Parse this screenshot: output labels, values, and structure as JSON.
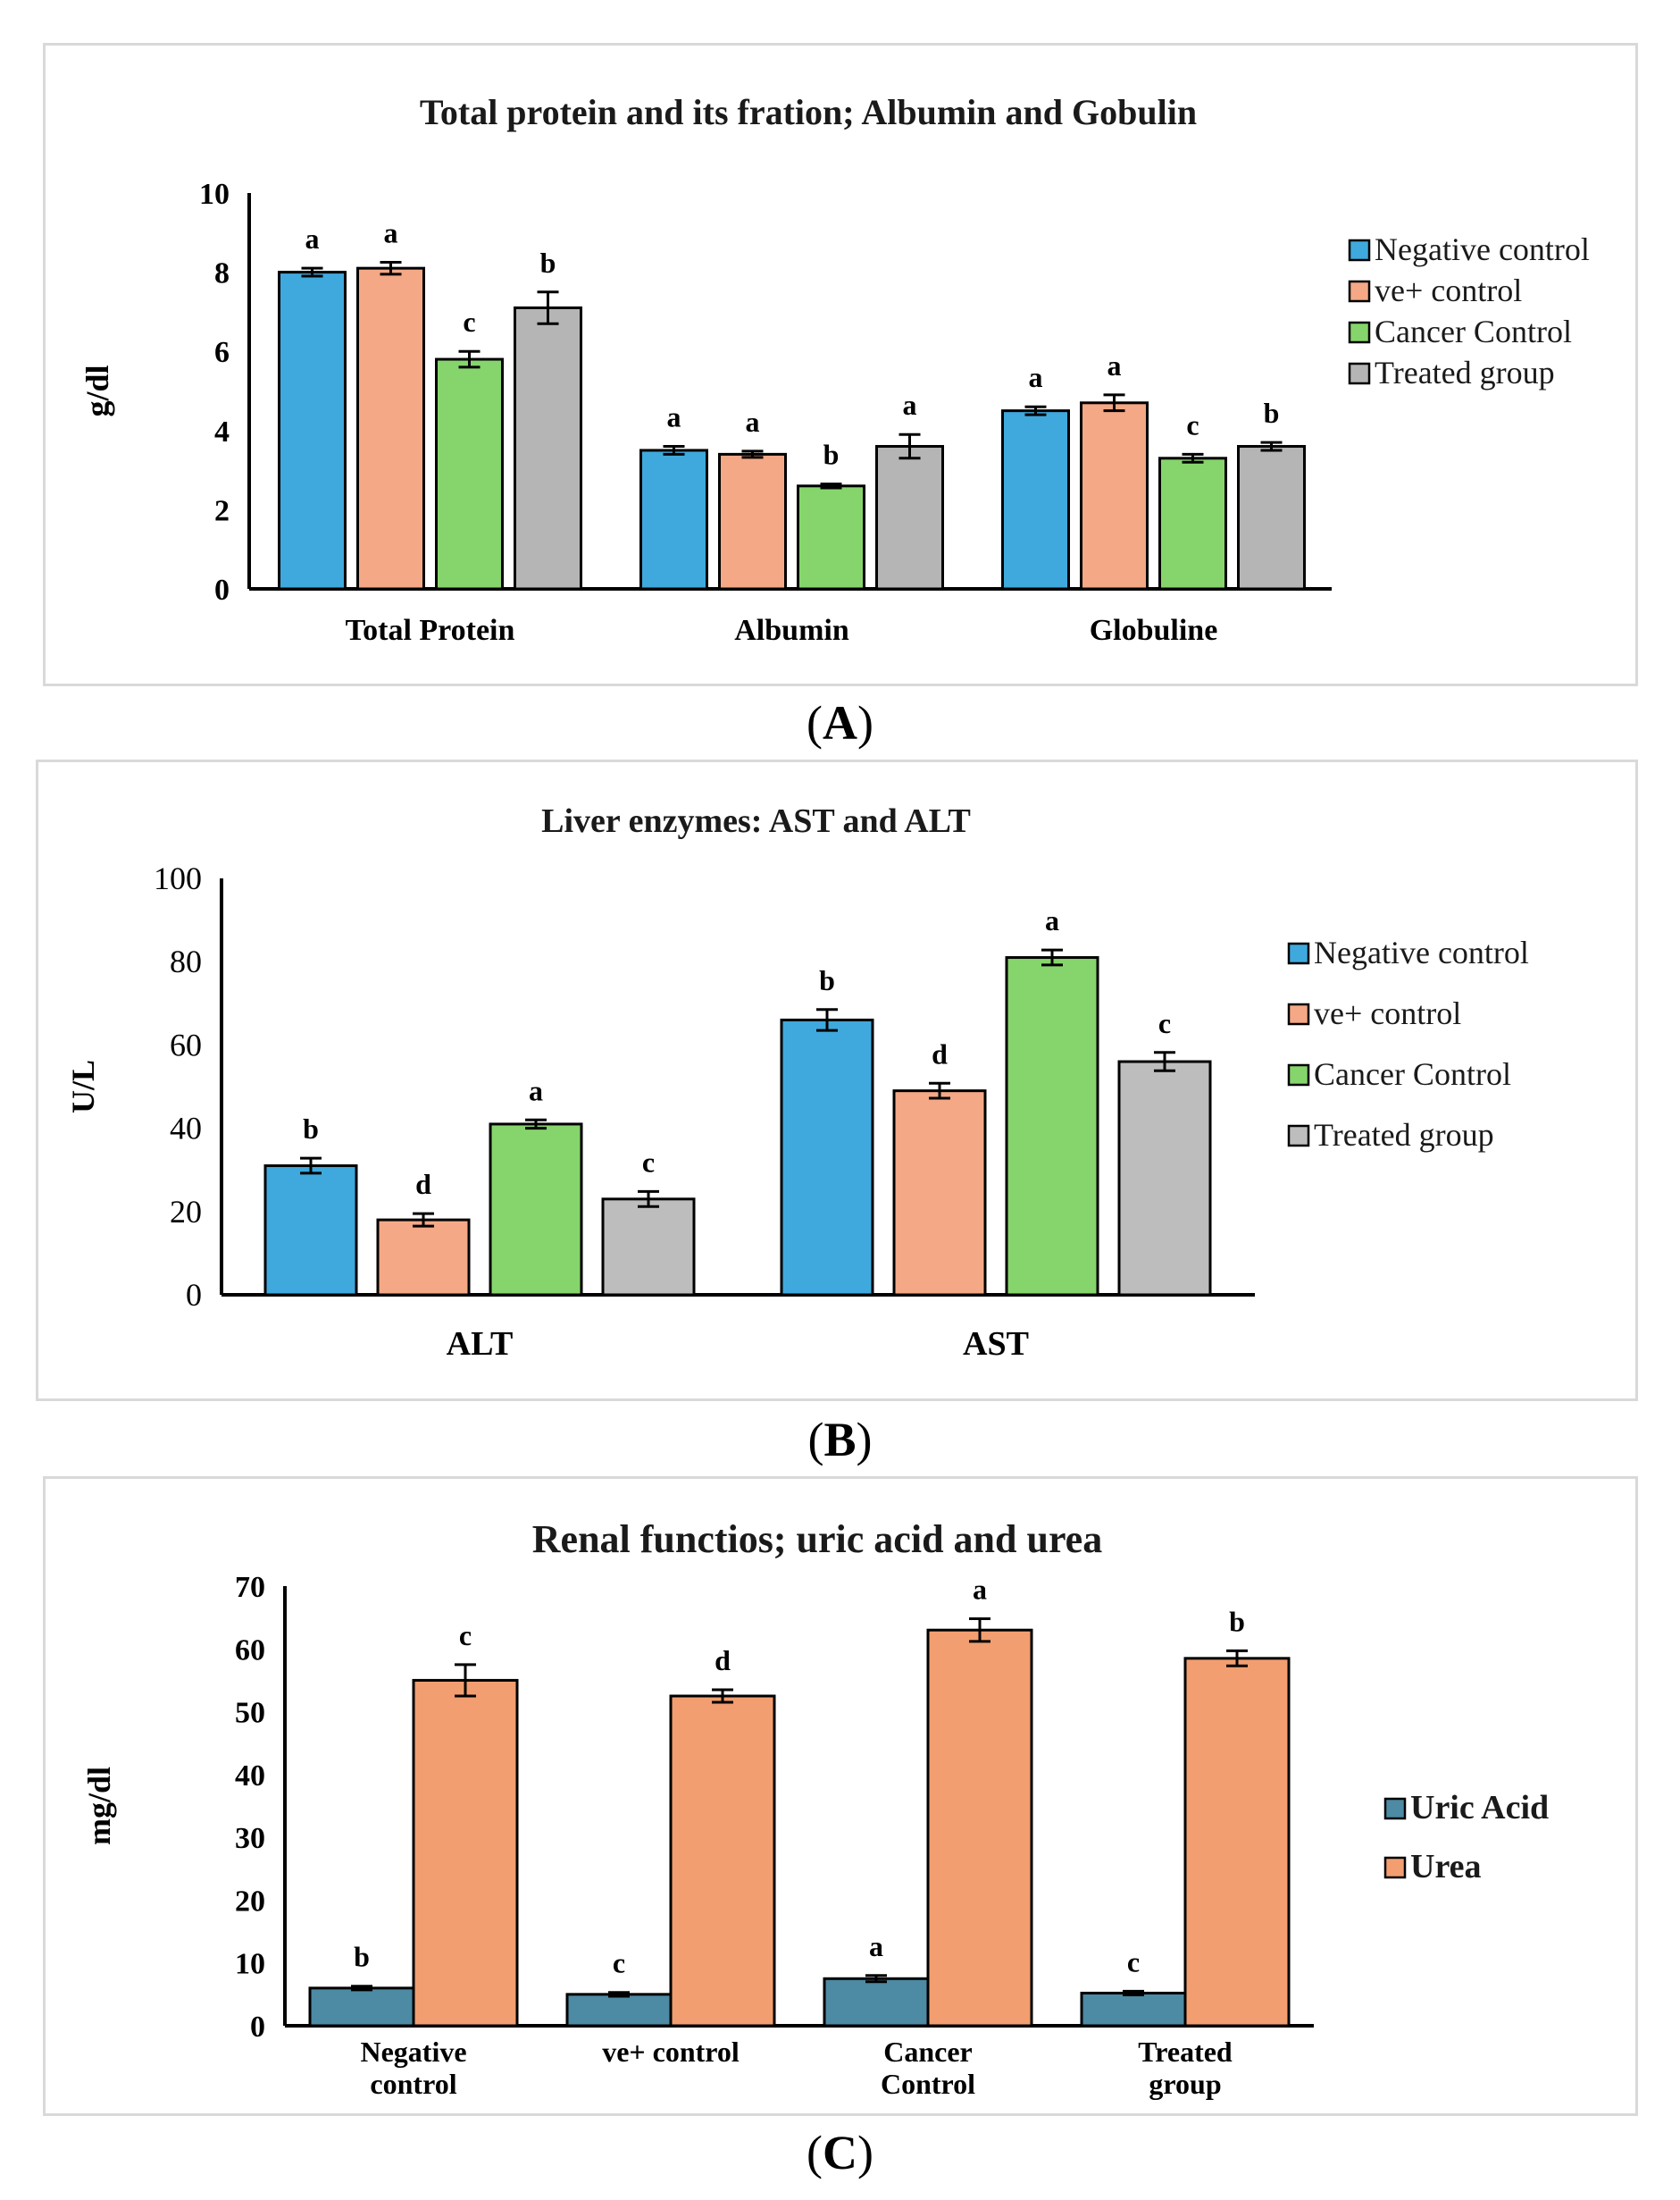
{
  "captions": [
    "A",
    "B",
    "C"
  ],
  "chart_data": [
    {
      "type": "bar",
      "title": "Total protein and its fration; Albumin and Gobulin",
      "ylabel": "g/dl",
      "xlabel": "",
      "ylim": [
        0,
        10
      ],
      "yticks": [
        0,
        2,
        4,
        6,
        8,
        10
      ],
      "categories": [
        "Total Protein",
        "Albumin",
        "Globuline"
      ],
      "legend_position": "right",
      "series": [
        {
          "name": "Negative control",
          "color": "#3fa9dd",
          "values": [
            8.0,
            3.5,
            4.5
          ],
          "errors": [
            0.1,
            0.1,
            0.1
          ],
          "letters": [
            "a",
            "a",
            "a"
          ]
        },
        {
          "name": " ve+ control",
          "color": "#f4a886",
          "values": [
            8.1,
            3.4,
            4.7
          ],
          "errors": [
            0.15,
            0.08,
            0.2
          ],
          "letters": [
            "a",
            "a",
            "a"
          ]
        },
        {
          "name": "Cancer Control",
          "color": "#86d56c",
          "values": [
            5.8,
            2.6,
            3.3
          ],
          "errors": [
            0.2,
            0.05,
            0.1
          ],
          "letters": [
            "c",
            "b",
            "c"
          ]
        },
        {
          "name": "Treated group",
          "color": "#b5b5b5",
          "values": [
            7.1,
            3.6,
            3.6
          ],
          "errors": [
            0.4,
            0.3,
            0.1
          ],
          "letters": [
            "b",
            "a",
            "b"
          ]
        }
      ]
    },
    {
      "type": "bar",
      "title": "Liver enzymes: AST and ALT",
      "ylabel": "U/L",
      "xlabel": "",
      "ylim": [
        0,
        100
      ],
      "yticks": [
        0,
        20,
        40,
        60,
        80,
        100
      ],
      "categories": [
        "ALT",
        "AST"
      ],
      "legend_position": "right",
      "series": [
        {
          "name": "Negative control",
          "color": "#3fa9dd",
          "values": [
            31,
            66
          ],
          "errors": [
            1.8,
            2.5
          ],
          "letters": [
            "b",
            "b"
          ]
        },
        {
          "name": " ve+ control",
          "color": "#f4a886",
          "values": [
            18,
            49
          ],
          "errors": [
            1.5,
            1.8
          ],
          "letters": [
            "d",
            "d"
          ]
        },
        {
          "name": "Cancer Control",
          "color": "#86d56c",
          "values": [
            41,
            81
          ],
          "errors": [
            1.0,
            1.8
          ],
          "letters": [
            "a",
            "a"
          ]
        },
        {
          "name": "Treated group",
          "color": "#bdbdbd",
          "values": [
            23,
            56
          ],
          "errors": [
            1.8,
            2.2
          ],
          "letters": [
            "c",
            "c"
          ]
        }
      ]
    },
    {
      "type": "bar",
      "title": "Renal functios; uric acid and urea",
      "ylabel": "mg/dl",
      "xlabel": "",
      "ylim": [
        0,
        70
      ],
      "yticks": [
        0,
        10,
        20,
        30,
        40,
        50,
        60,
        70
      ],
      "categories": [
        "Negative control",
        "ve+  control",
        "Cancer Control",
        "Treated group"
      ],
      "legend_position": "right",
      "series": [
        {
          "name": "Uric Acid",
          "color": "#4d8aa3",
          "values": [
            6.0,
            5.0,
            7.5,
            5.2
          ],
          "errors": [
            0.3,
            0.3,
            0.5,
            0.3
          ],
          "letters": [
            "b",
            "c",
            "a",
            "c"
          ]
        },
        {
          "name": "Urea",
          "color": "#f29e70",
          "values": [
            55,
            52.5,
            63,
            58.5
          ],
          "errors": [
            2.5,
            1.0,
            1.8,
            1.2
          ],
          "letters": [
            "c",
            "d",
            "a",
            "b"
          ]
        }
      ]
    }
  ]
}
